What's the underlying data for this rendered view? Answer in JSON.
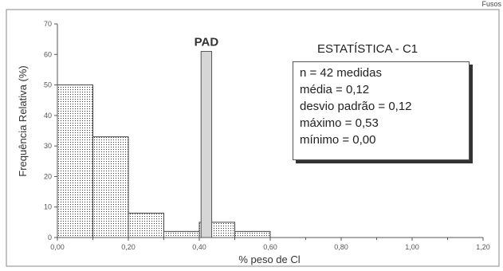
{
  "chart_data": {
    "type": "bar",
    "title": "",
    "xlabel": "% peso de Cl",
    "ylabel": "Frequência Relativa (%)",
    "xlim": [
      0,
      1.2
    ],
    "ylim": [
      0,
      70
    ],
    "x_ticks": [
      "0,00",
      "0,20",
      "0,40",
      "0,60",
      "0,80",
      "1,00",
      "1,20"
    ],
    "x_tick_values": [
      0,
      0.2,
      0.4,
      0.6,
      0.8,
      1.0,
      1.2
    ],
    "y_ticks": [
      "0",
      "10",
      "20",
      "30",
      "40",
      "50",
      "60",
      "70"
    ],
    "y_tick_values": [
      0,
      10,
      20,
      30,
      40,
      50,
      60,
      70
    ],
    "bins": [
      {
        "x0": 0.0,
        "x1": 0.1,
        "value": 50
      },
      {
        "x0": 0.1,
        "x1": 0.2,
        "value": 33
      },
      {
        "x0": 0.2,
        "x1": 0.3,
        "value": 8
      },
      {
        "x0": 0.3,
        "x1": 0.4,
        "value": 2
      },
      {
        "x0": 0.4,
        "x1": 0.5,
        "value": 5
      },
      {
        "x0": 0.5,
        "x1": 0.6,
        "value": 2
      }
    ],
    "reference_bar": {
      "label": "PAD",
      "x0": 0.405,
      "x1": 0.435,
      "value": 61
    },
    "grid": false,
    "stats": {
      "title": "ESTATÍSTICA - C1",
      "lines": [
        "n = 42 medidas",
        "média = 0,12",
        "desvio padrão = 0,12",
        "máximo = 0,53",
        "mínimo = 0,00"
      ]
    },
    "colors": {
      "frame": "#7a7a7a",
      "bar_fill": "#ffffff",
      "dot": "#333333",
      "pad_fill": "#d6d6d6"
    }
  },
  "corner_text": "Fusos"
}
